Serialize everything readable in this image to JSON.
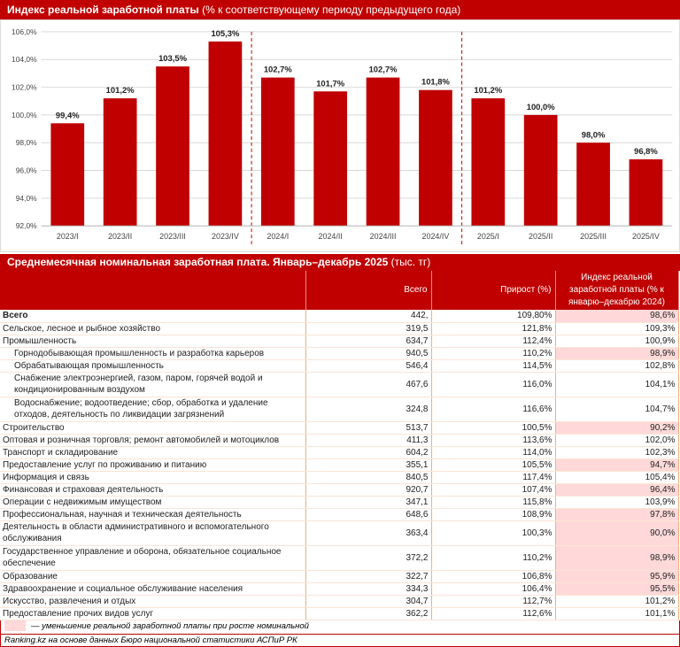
{
  "chart_title": "Индекс реальной заработной платы",
  "chart_title_unit": "(% к соответствующему периоду предыдущего года)",
  "chart_data": {
    "type": "bar",
    "title": "Индекс реальной заработной платы (% к соответствующему периоду предыдущего года)",
    "categories": [
      "2023/I",
      "2023/II",
      "2023/III",
      "2023/IV",
      "2024/I",
      "2024/II",
      "2024/III",
      "2024/IV",
      "2025/I",
      "2025/II",
      "2025/III",
      "2025/IV"
    ],
    "values": [
      99.4,
      101.2,
      103.5,
      105.3,
      102.7,
      101.7,
      102.7,
      101.8,
      101.2,
      100.0,
      98.0,
      96.8
    ],
    "data_labels": [
      "99,4%",
      "101,2%",
      "103,5%",
      "105,3%",
      "102,7%",
      "101,7%",
      "102,7%",
      "101,8%",
      "101,2%",
      "100,0%",
      "98,0%",
      "96,8%"
    ],
    "ylim": [
      92,
      106
    ],
    "yticks": [
      "92,0%",
      "94,0%",
      "96,0%",
      "98,0%",
      "100,0%",
      "102,0%",
      "104,0%",
      "106,0%"
    ],
    "grid": true,
    "color": "#c00000"
  },
  "table": {
    "title": "Среднемесячная номинальная заработная плата. Январь–декабрь 2025",
    "title_unit": "(тыс. тг)",
    "headers": [
      "",
      "Всего",
      "Прирост (%)",
      "Индекс реальной заработной платы (% к январю–декабрю 2024)"
    ],
    "rows": [
      {
        "label": "Всего",
        "total": "442,",
        "growth": "109,80%",
        "index": "98,6%",
        "neg": true,
        "bold": true
      },
      {
        "label": "Сельское, лесное и рыбное хозяйство",
        "total": "319,5",
        "growth": "121,8%",
        "index": "109,3%"
      },
      {
        "label": "Промышленность",
        "total": "634,7",
        "growth": "112,4%",
        "index": "100,9%"
      },
      {
        "label": "Горнодобывающая промышленность и разработка карьеров",
        "total": "940,5",
        "growth": "110,2%",
        "index": "98,9%",
        "neg": true,
        "indent": true
      },
      {
        "label": "Обрабатывающая промышленность",
        "total": "546,4",
        "growth": "114,5%",
        "index": "102,8%",
        "indent": true
      },
      {
        "label": "Снабжение электроэнергией, газом, паром, горячей водой и кондиционированным воздухом",
        "total": "467,6",
        "growth": "116,0%",
        "index": "104,1%",
        "indent": true,
        "double": true
      },
      {
        "label": "Водоснабжение; водоотведение; сбор, обработка и удаление отходов, деятельность по ликвидации загрязнений",
        "total": "324,8",
        "growth": "116,6%",
        "index": "104,7%",
        "indent": true,
        "double": true
      },
      {
        "label": "Строительство",
        "total": "513,7",
        "growth": "100,5%",
        "index": "90,2%",
        "neg": true
      },
      {
        "label": "Оптовая и розничная торговля; ремонт автомобилей и мотоциклов",
        "total": "411,3",
        "growth": "113,6%",
        "index": "102,0%"
      },
      {
        "label": "Транспорт и складирование",
        "total": "604,2",
        "growth": "114,0%",
        "index": "102,3%"
      },
      {
        "label": "Предоставление услуг по проживанию и питанию",
        "total": "355,1",
        "growth": "105,5%",
        "index": "94,7%",
        "neg": true
      },
      {
        "label": "Информация и связь",
        "total": "840,5",
        "growth": "117,4%",
        "index": "105,4%"
      },
      {
        "label": "Финансовая и страховая деятельность",
        "total": "920,7",
        "growth": "107,4%",
        "index": "96,4%",
        "neg": true
      },
      {
        "label": "Операции с недвижимым имуществом",
        "total": "347,1",
        "growth": "115,8%",
        "index": "103,9%"
      },
      {
        "label": "Профессиональная, научная и техническая деятельность",
        "total": "648,6",
        "growth": "108,9%",
        "index": "97,8%",
        "neg": true
      },
      {
        "label": "Деятельность в области административного и вспомогательного обслуживания",
        "total": "363,4",
        "growth": "100,3%",
        "index": "90,0%",
        "neg": true,
        "double": true
      },
      {
        "label": "Государственное управление и оборона, обязательное социальное обеспечение",
        "total": "372,2",
        "growth": "110,2%",
        "index": "98,9%",
        "neg": true,
        "double": true
      },
      {
        "label": "Образование",
        "total": "322,7",
        "growth": "106,8%",
        "index": "95,9%",
        "neg": true
      },
      {
        "label": "Здравоохранение и социальное обслуживание населения",
        "total": "334,3",
        "growth": "106,4%",
        "index": "95,5%",
        "neg": true
      },
      {
        "label": "Искусство, развлечения и отдых",
        "total": "304,7",
        "growth": "112,7%",
        "index": "101,2%"
      },
      {
        "label": "Предоставление прочих видов услуг",
        "total": "362,2",
        "growth": "112,6%",
        "index": "101,1%"
      }
    ]
  },
  "legend": "— уменьшение реальной заработной платы при росте номинальной",
  "source": "Ranking.kz на основе данных Бюро национальной статистики АСПиР РК",
  "neg_color": "#ffd9d9"
}
